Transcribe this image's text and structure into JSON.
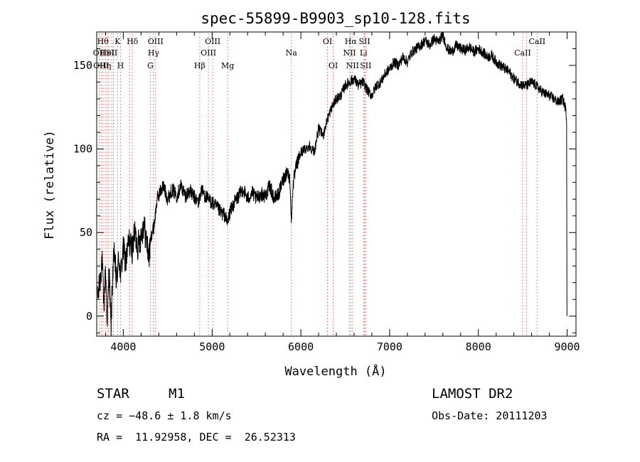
{
  "chart_data": {
    "type": "line",
    "title": "spec-55899-B9903_sp10-128.fits",
    "xlabel": "Wavelength (Å)",
    "ylabel": "Flux (relative)",
    "xlim": [
      3700,
      9100
    ],
    "ylim": [
      -12,
      170
    ],
    "xticks": [
      4000,
      5000,
      6000,
      7000,
      8000,
      9000
    ],
    "yticks": [
      0,
      50,
      100,
      150
    ],
    "grid": false,
    "legend": "none",
    "line_color": "#000000",
    "marker_color": "#e06060",
    "spectrum_anchors": [
      [
        3710,
        10
      ],
      [
        3740,
        22
      ],
      [
        3760,
        35
      ],
      [
        3780,
        5
      ],
      [
        3800,
        28
      ],
      [
        3820,
        -5
      ],
      [
        3840,
        30
      ],
      [
        3860,
        -8
      ],
      [
        3880,
        25
      ],
      [
        3900,
        38
      ],
      [
        3920,
        20
      ],
      [
        3950,
        35
      ],
      [
        3970,
        25
      ],
      [
        4000,
        40
      ],
      [
        4030,
        32
      ],
      [
        4060,
        45
      ],
      [
        4100,
        40
      ],
      [
        4130,
        50
      ],
      [
        4160,
        42
      ],
      [
        4200,
        48
      ],
      [
        4230,
        55
      ],
      [
        4260,
        45
      ],
      [
        4290,
        35
      ],
      [
        4300,
        42
      ],
      [
        4320,
        50
      ],
      [
        4340,
        52
      ],
      [
        4360,
        60
      ],
      [
        4380,
        70
      ],
      [
        4420,
        75
      ],
      [
        4450,
        78
      ],
      [
        4500,
        70
      ],
      [
        4550,
        76
      ],
      [
        4600,
        72
      ],
      [
        4650,
        78
      ],
      [
        4700,
        72
      ],
      [
        4750,
        75
      ],
      [
        4800,
        71
      ],
      [
        4850,
        68
      ],
      [
        4880,
        76
      ],
      [
        4920,
        72
      ],
      [
        4950,
        70
      ],
      [
        5000,
        68
      ],
      [
        5050,
        65
      ],
      [
        5100,
        62
      ],
      [
        5150,
        60
      ],
      [
        5170,
        55
      ],
      [
        5200,
        62
      ],
      [
        5250,
        68
      ],
      [
        5300,
        72
      ],
      [
        5350,
        76
      ],
      [
        5400,
        70
      ],
      [
        5450,
        74
      ],
      [
        5500,
        70
      ],
      [
        5550,
        73
      ],
      [
        5600,
        72
      ],
      [
        5650,
        78
      ],
      [
        5700,
        70
      ],
      [
        5750,
        73
      ],
      [
        5800,
        82
      ],
      [
        5850,
        87
      ],
      [
        5880,
        80
      ],
      [
        5893,
        55
      ],
      [
        5910,
        78
      ],
      [
        5950,
        90
      ],
      [
        6000,
        98
      ],
      [
        6050,
        100
      ],
      [
        6100,
        102
      ],
      [
        6150,
        98
      ],
      [
        6200,
        112
      ],
      [
        6250,
        108
      ],
      [
        6300,
        118
      ],
      [
        6350,
        125
      ],
      [
        6400,
        130
      ],
      [
        6450,
        132
      ],
      [
        6500,
        138
      ],
      [
        6550,
        140
      ],
      [
        6600,
        142
      ],
      [
        6650,
        138
      ],
      [
        6700,
        140
      ],
      [
        6750,
        135
      ],
      [
        6800,
        132
      ],
      [
        6850,
        138
      ],
      [
        6900,
        140
      ],
      [
        6950,
        145
      ],
      [
        7000,
        148
      ],
      [
        7050,
        152
      ],
      [
        7100,
        150
      ],
      [
        7150,
        155
      ],
      [
        7200,
        152
      ],
      [
        7250,
        158
      ],
      [
        7300,
        160
      ],
      [
        7350,
        162
      ],
      [
        7400,
        165
      ],
      [
        7450,
        162
      ],
      [
        7500,
        166
      ],
      [
        7550,
        164
      ],
      [
        7600,
        168
      ],
      [
        7650,
        160
      ],
      [
        7700,
        158
      ],
      [
        7750,
        162
      ],
      [
        7800,
        160
      ],
      [
        7850,
        159
      ],
      [
        7900,
        161
      ],
      [
        7950,
        158
      ],
      [
        8000,
        160
      ],
      [
        8050,
        158
      ],
      [
        8100,
        155
      ],
      [
        8150,
        156
      ],
      [
        8200,
        152
      ],
      [
        8250,
        150
      ],
      [
        8300,
        148
      ],
      [
        8350,
        146
      ],
      [
        8400,
        142
      ],
      [
        8450,
        140
      ],
      [
        8500,
        138
      ],
      [
        8550,
        138
      ],
      [
        8600,
        140
      ],
      [
        8650,
        138
      ],
      [
        8700,
        135
      ],
      [
        8750,
        133
      ],
      [
        8800,
        132
      ],
      [
        8850,
        130
      ],
      [
        8900,
        128
      ],
      [
        8950,
        130
      ],
      [
        8980,
        125
      ],
      [
        8995,
        118
      ],
      [
        8998,
        0
      ]
    ],
    "lines": [
      {
        "wavelength": 3728,
        "label": "OII",
        "row": 2,
        "align": "middle"
      },
      {
        "wavelength": 3750,
        "label": "OIII",
        "row": 3,
        "align": "middle"
      },
      {
        "wavelength": 3770,
        "label": "Hθ",
        "row": 1,
        "align": "middle"
      },
      {
        "wavelength": 3798,
        "label": "Hη",
        "row": 3,
        "align": "middle"
      },
      {
        "wavelength": 3820,
        "label": "HeI",
        "row": 2,
        "align": "middle"
      },
      {
        "wavelength": 3835,
        "label": "",
        "row": 0,
        "align": "middle"
      },
      {
        "wavelength": 3869,
        "label": "SII",
        "row": 2,
        "align": "middle"
      },
      {
        "wavelength": 3889,
        "label": "",
        "row": 0,
        "align": "middle"
      },
      {
        "wavelength": 3934,
        "label": "K",
        "row": 1,
        "align": "middle"
      },
      {
        "wavelength": 3969,
        "label": "H",
        "row": 3,
        "align": "middle"
      },
      {
        "wavelength": 4070,
        "label": "",
        "row": 0,
        "align": "middle"
      },
      {
        "wavelength": 4102,
        "label": "Hδ",
        "row": 1,
        "align": "middle"
      },
      {
        "wavelength": 4304,
        "label": "G",
        "row": 3,
        "align": "middle"
      },
      {
        "wavelength": 4340,
        "label": "Hγ",
        "row": 2,
        "align": "middle"
      },
      {
        "wavelength": 4363,
        "label": "OIII",
        "row": 1,
        "align": "middle"
      },
      {
        "wavelength": 4861,
        "label": "Hβ",
        "row": 3,
        "align": "middle"
      },
      {
        "wavelength": 4959,
        "label": "OIII",
        "row": 2,
        "align": "middle"
      },
      {
        "wavelength": 5007,
        "label": "OIII",
        "row": 1,
        "align": "middle"
      },
      {
        "wavelength": 5175,
        "label": "Mg",
        "row": 3,
        "align": "middle"
      },
      {
        "wavelength": 5893,
        "label": "Na",
        "row": 2,
        "align": "middle"
      },
      {
        "wavelength": 6300,
        "label": "OI",
        "row": 1,
        "align": "middle"
      },
      {
        "wavelength": 6364,
        "label": "OI",
        "row": 3,
        "align": "middle"
      },
      {
        "wavelength": 6548,
        "label": "NII",
        "row": 2,
        "align": "middle"
      },
      {
        "wavelength": 6563,
        "label": "Hα",
        "row": 1,
        "align": "middle"
      },
      {
        "wavelength": 6583,
        "label": "NII",
        "row": 3,
        "align": "middle"
      },
      {
        "wavelength": 6707,
        "label": "Li",
        "row": 2,
        "align": "middle"
      },
      {
        "wavelength": 6717,
        "label": "SII",
        "row": 1,
        "align": "middle"
      },
      {
        "wavelength": 6731,
        "label": "SII",
        "row": 3,
        "align": "middle"
      },
      {
        "wavelength": 8498,
        "label": "CaII",
        "row": 2,
        "align": "middle"
      },
      {
        "wavelength": 8542,
        "label": "",
        "row": 0,
        "align": "middle"
      },
      {
        "wavelength": 8662,
        "label": "CaII",
        "row": 1,
        "align": "middle"
      }
    ]
  },
  "info": {
    "object_type": "STAR",
    "subclass": "M1",
    "survey": "LAMOST DR2",
    "redshift": "cz = −48.6 ± 1.8 km/s",
    "obs_date": "Obs-Date: 20111203",
    "coords": "RA =  11.92958, DEC =  26.52313"
  }
}
